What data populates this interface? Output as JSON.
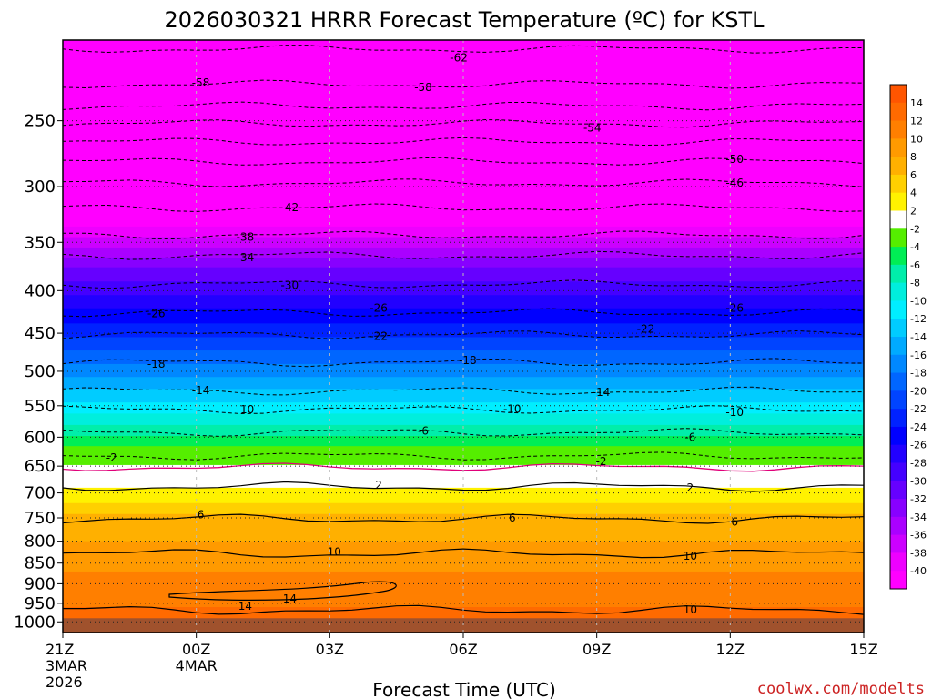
{
  "chart_data": {
    "type": "heatmap",
    "title": "2026030321 HRRR Forecast Temperature (ºC) for KSTL",
    "xlabel": "Forecast Time (UTC)",
    "ylabel": "",
    "credit": "coolwx.com/modelts",
    "x_ticks": [
      {
        "hour": 0,
        "label": "21Z",
        "sub1": "3MAR",
        "sub2": "2026"
      },
      {
        "hour": 3,
        "label": "00Z",
        "sub1": "4MAR",
        "sub2": ""
      },
      {
        "hour": 6,
        "label": "03Z",
        "sub1": "",
        "sub2": ""
      },
      {
        "hour": 9,
        "label": "06Z",
        "sub1": "",
        "sub2": ""
      },
      {
        "hour": 12,
        "label": "09Z",
        "sub1": "",
        "sub2": ""
      },
      {
        "hour": 15,
        "label": "12Z",
        "sub1": "",
        "sub2": ""
      },
      {
        "hour": 18,
        "label": "15Z",
        "sub1": "",
        "sub2": ""
      }
    ],
    "xlim": [
      0,
      18
    ],
    "y_ticks": [
      250,
      300,
      350,
      400,
      450,
      500,
      550,
      600,
      650,
      700,
      750,
      800,
      850,
      900,
      950,
      1000
    ],
    "ylim": [
      1030,
      200
    ],
    "y_scale": "log",
    "surface_pressure": 990,
    "colorbar": {
      "labels": [
        "14",
        "12",
        "10",
        "8",
        "6",
        "4",
        "2",
        "-2",
        "-4",
        "-6",
        "-8",
        "-10",
        "-12",
        "-14",
        "-16",
        "-18",
        "-20",
        "-22",
        "-24",
        "-26",
        "-28",
        "-30",
        "-32",
        "-34",
        "-36",
        "-38",
        "-40"
      ],
      "colors": [
        "#ff5500",
        "#ff6a00",
        "#ff7f00",
        "#ff9a00",
        "#ffb000",
        "#ffd000",
        "#fff200",
        "#ffffff",
        "#55ee00",
        "#00ee55",
        "#00eeaa",
        "#00eedd",
        "#00eeff",
        "#00ccff",
        "#00aaff",
        "#0088ff",
        "#0066ff",
        "#0044ff",
        "#0022ff",
        "#0000ff",
        "#2200ff",
        "#4400ff",
        "#6600ff",
        "#8800ff",
        "#aa00ff",
        "#cc00ff",
        "#ee00ff",
        "#ff00ff"
      ]
    },
    "contour_labels": [
      {
        "text": "-62",
        "hour": 8.9,
        "p": 210
      },
      {
        "text": "-58",
        "hour": 3.1,
        "p": 225
      },
      {
        "text": "-58",
        "hour": 8.1,
        "p": 228
      },
      {
        "text": "-54",
        "hour": 11.9,
        "p": 255
      },
      {
        "text": "-50",
        "hour": 15.1,
        "p": 278
      },
      {
        "text": "-46",
        "hour": 15.1,
        "p": 297
      },
      {
        "text": "-42",
        "hour": 5.1,
        "p": 318
      },
      {
        "text": "-38",
        "hour": 4.1,
        "p": 345
      },
      {
        "text": "-34",
        "hour": 4.1,
        "p": 365
      },
      {
        "text": "-30",
        "hour": 5.1,
        "p": 394
      },
      {
        "text": "-26",
        "hour": 2.1,
        "p": 426
      },
      {
        "text": "-26",
        "hour": 7.1,
        "p": 420
      },
      {
        "text": "-26",
        "hour": 15.1,
        "p": 420
      },
      {
        "text": "-22",
        "hour": 7.1,
        "p": 454
      },
      {
        "text": "-22",
        "hour": 13.1,
        "p": 445
      },
      {
        "text": "-18",
        "hour": 2.1,
        "p": 490
      },
      {
        "text": "-18",
        "hour": 9.1,
        "p": 485
      },
      {
        "text": "-14",
        "hour": 3.1,
        "p": 527
      },
      {
        "text": "-14",
        "hour": 12.1,
        "p": 530
      },
      {
        "text": "-10",
        "hour": 4.1,
        "p": 556
      },
      {
        "text": "-10",
        "hour": 10.1,
        "p": 555
      },
      {
        "text": "-10",
        "hour": 15.1,
        "p": 560
      },
      {
        "text": "-6",
        "hour": 8.1,
        "p": 590
      },
      {
        "text": "-6",
        "hour": 14.1,
        "p": 600
      },
      {
        "text": "-2",
        "hour": 1.1,
        "p": 635
      },
      {
        "text": "-2",
        "hour": 12.1,
        "p": 642
      },
      {
        "text": "2",
        "hour": 7.1,
        "p": 685
      },
      {
        "text": "2",
        "hour": 14.1,
        "p": 690
      },
      {
        "text": "6",
        "hour": 3.1,
        "p": 743
      },
      {
        "text": "6",
        "hour": 10.1,
        "p": 750
      },
      {
        "text": "6",
        "hour": 15.1,
        "p": 759
      },
      {
        "text": "10",
        "hour": 6.1,
        "p": 824
      },
      {
        "text": "10",
        "hour": 14.1,
        "p": 834
      },
      {
        "text": "14",
        "hour": 5.1,
        "p": 938
      },
      {
        "text": "14",
        "hour": 4.1,
        "p": 958
      },
      {
        "text": "10",
        "hour": 14.1,
        "p": 967
      }
    ]
  }
}
